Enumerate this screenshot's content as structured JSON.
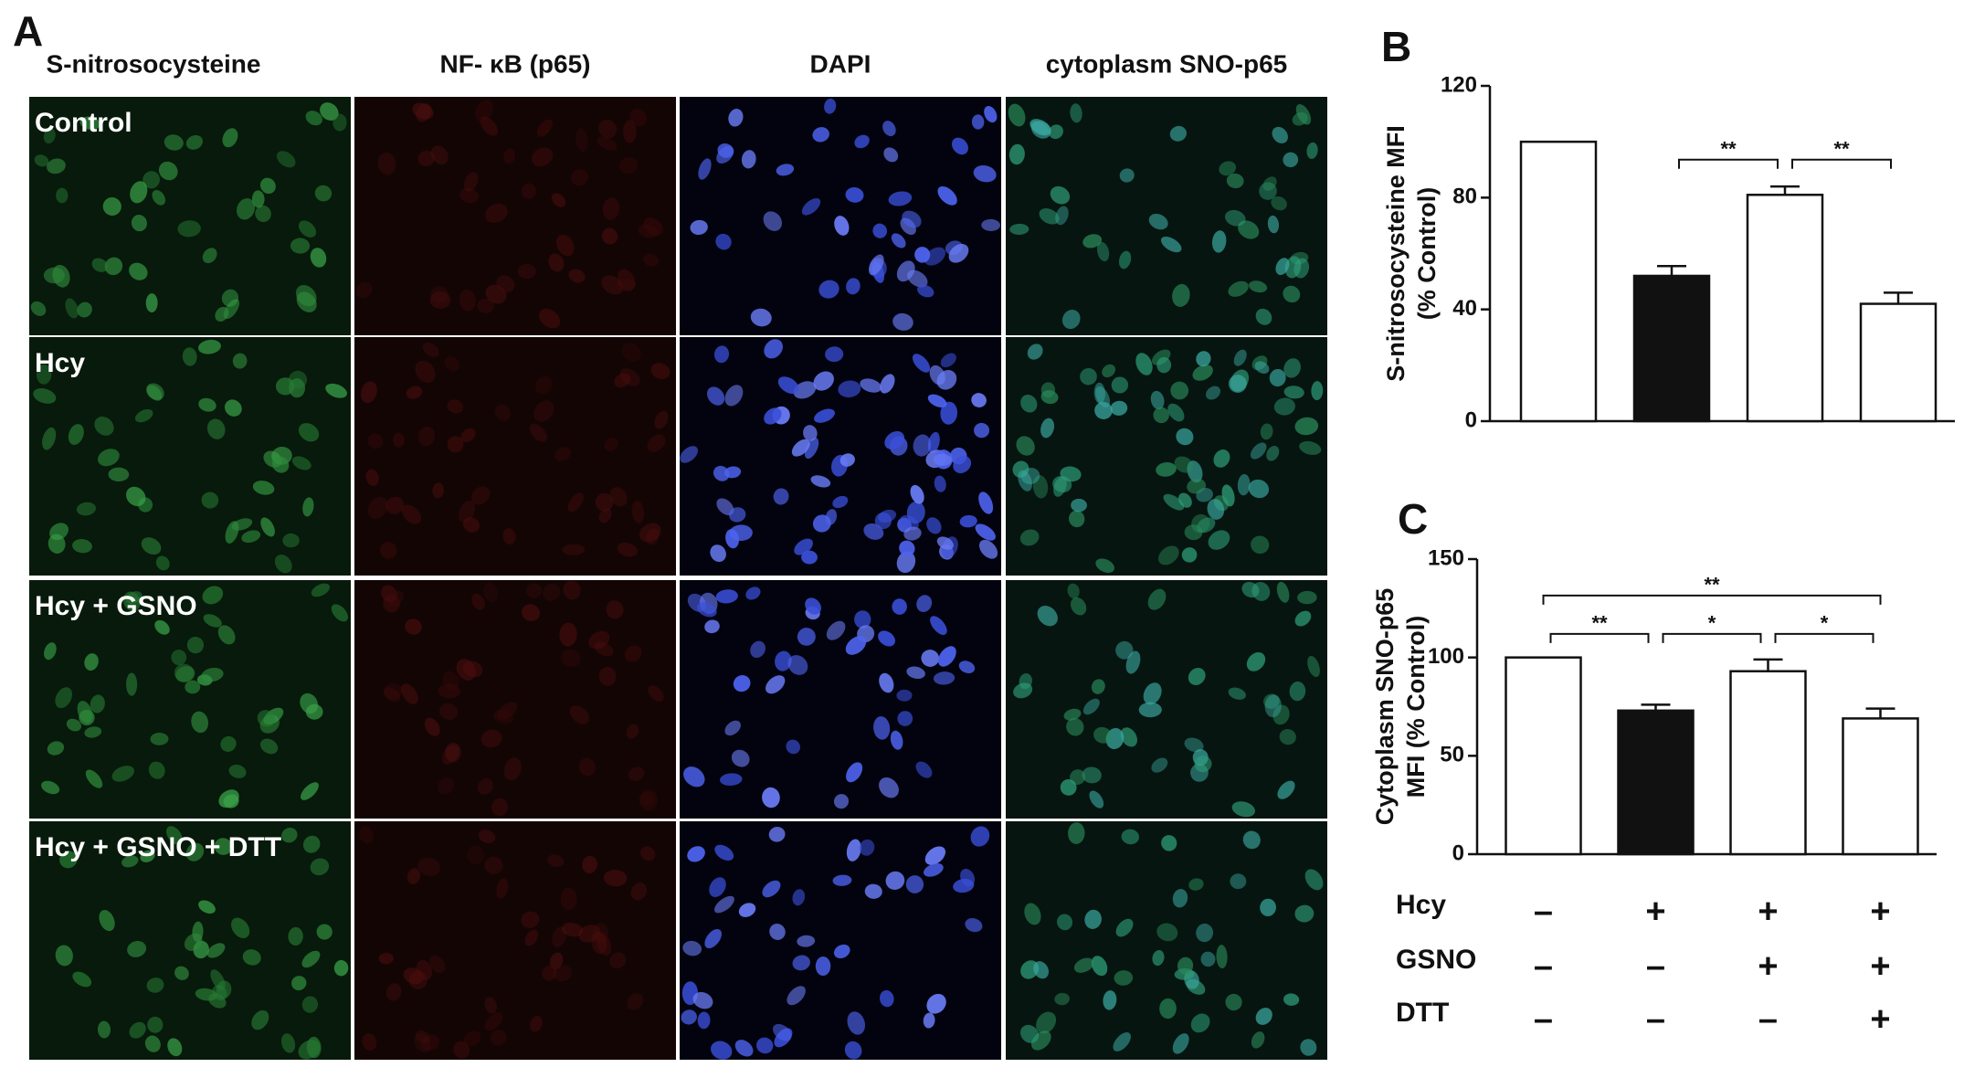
{
  "panel_a": {
    "label": "A",
    "columns": [
      "S-nitrosocysteine",
      "NF- κB (p65)",
      "DAPI",
      "cytoplasm SNO-p65"
    ],
    "rows": [
      "Control",
      "Hcy",
      "Hcy + GSNO",
      "Hcy + GSNO + DTT"
    ]
  },
  "chart_data": [
    {
      "type": "bar",
      "panel_label": "B",
      "ylabel": [
        "S-nitrosocysteine MFI",
        "(% Control)"
      ],
      "categories": [
        null,
        null,
        null,
        null
      ],
      "values": [
        100,
        52,
        81,
        42
      ],
      "errors": [
        0,
        3.5,
        3,
        4
      ],
      "colors": [
        "#ffffff",
        "#111111",
        "#ffffff",
        "#ffffff"
      ],
      "ylim": [
        0,
        120
      ],
      "yticks": [
        0,
        40,
        80,
        120
      ],
      "brackets": [
        {
          "bars": [
            1,
            2
          ],
          "label": "**"
        },
        {
          "bars": [
            2,
            3
          ],
          "label": "**"
        }
      ]
    },
    {
      "type": "bar",
      "panel_label": "C",
      "ylabel": [
        "Cytoplasm SNO-p65",
        "MFI (% Control)"
      ],
      "categories": [
        null,
        null,
        null,
        null
      ],
      "values": [
        100,
        73,
        93,
        69
      ],
      "errors": [
        0,
        3,
        6,
        5
      ],
      "colors": [
        "#ffffff",
        "#111111",
        "#ffffff",
        "#ffffff"
      ],
      "ylim": [
        0,
        150
      ],
      "yticks": [
        0,
        50,
        100,
        150
      ],
      "brackets": [
        {
          "bars": [
            0,
            3
          ],
          "label": "**"
        },
        {
          "bars": [
            0,
            1
          ],
          "label": "**"
        },
        {
          "bars": [
            1,
            2
          ],
          "label": "*"
        },
        {
          "bars": [
            2,
            3
          ],
          "label": "*"
        }
      ]
    }
  ],
  "conditions": [
    {
      "name": "Hcy",
      "signs": [
        "–",
        "+",
        "+",
        "+"
      ]
    },
    {
      "name": "GSNO",
      "signs": [
        "–",
        "–",
        "+",
        "+"
      ]
    },
    {
      "name": "DTT",
      "signs": [
        "–",
        "–",
        "–",
        "+"
      ]
    }
  ]
}
